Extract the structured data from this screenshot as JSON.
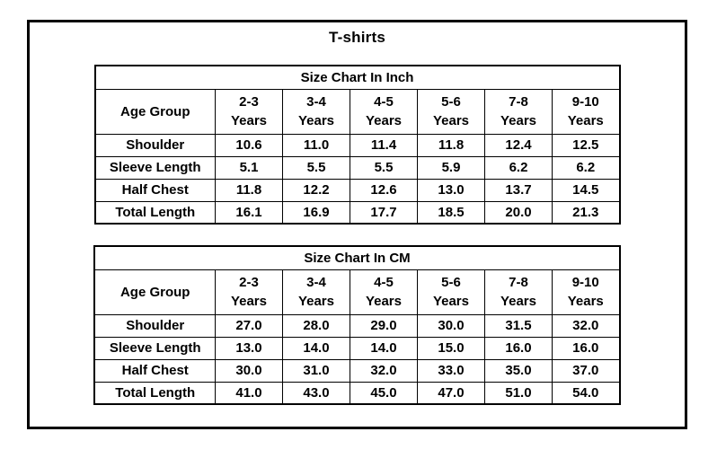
{
  "page": {
    "title": "T-shirts"
  },
  "tables": [
    {
      "title": "Size Chart In Inch",
      "header": {
        "row_label": "Age Group",
        "columns": [
          "2-3\nYears",
          "3-4\nYears",
          "4-5\nYears",
          "5-6\nYears",
          "7-8\nYears",
          "9-10\nYears"
        ]
      },
      "rows": [
        {
          "label": "Shoulder",
          "values": [
            "10.6",
            "11.0",
            "11.4",
            "11.8",
            "12.4",
            "12.5"
          ]
        },
        {
          "label": "Sleeve Length",
          "values": [
            "5.1",
            "5.5",
            "5.5",
            "5.9",
            "6.2",
            "6.2"
          ]
        },
        {
          "label": "Half Chest",
          "values": [
            "11.8",
            "12.2",
            "12.6",
            "13.0",
            "13.7",
            "14.5"
          ]
        },
        {
          "label": "Total Length",
          "values": [
            "16.1",
            "16.9",
            "17.7",
            "18.5",
            "20.0",
            "21.3"
          ]
        }
      ]
    },
    {
      "title": "Size Chart In CM",
      "header": {
        "row_label": "Age Group",
        "columns": [
          "2-3\nYears",
          "3-4\nYears",
          "4-5\nYears",
          "5-6\nYears",
          "7-8\nYears",
          "9-10\nYears"
        ]
      },
      "rows": [
        {
          "label": "Shoulder",
          "values": [
            "27.0",
            "28.0",
            "29.0",
            "30.0",
            "31.5",
            "32.0"
          ]
        },
        {
          "label": "Sleeve Length",
          "values": [
            "13.0",
            "14.0",
            "14.0",
            "15.0",
            "16.0",
            "16.0"
          ]
        },
        {
          "label": "Half Chest",
          "values": [
            "30.0",
            "31.0",
            "32.0",
            "33.0",
            "35.0",
            "37.0"
          ]
        },
        {
          "label": "Total Length",
          "values": [
            "41.0",
            "43.0",
            "45.0",
            "47.0",
            "51.0",
            "54.0"
          ]
        }
      ]
    }
  ]
}
